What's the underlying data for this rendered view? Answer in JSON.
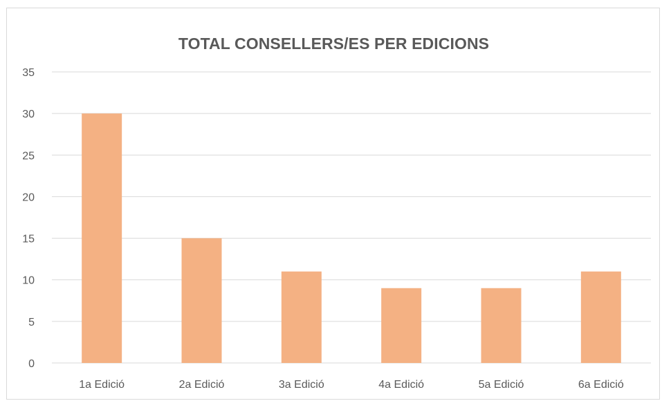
{
  "chart_data": {
    "type": "bar",
    "title": "TOTAL CONSELLERS/ES PER EDICIONS",
    "xlabel": "",
    "ylabel": "",
    "categories": [
      "1a Edició",
      "2a Edició",
      "3a Edició",
      "4a Edició",
      "5a Edició",
      "6a Edició"
    ],
    "values": [
      30,
      15,
      11,
      9,
      9,
      11
    ],
    "ylim": [
      0,
      35
    ],
    "yticks": [
      0,
      5,
      10,
      15,
      20,
      25,
      30,
      35
    ],
    "grid": true,
    "legend": "none",
    "bar_color": "#f4b183",
    "grid_color": "#d9d9d9",
    "text_color": "#595959"
  }
}
